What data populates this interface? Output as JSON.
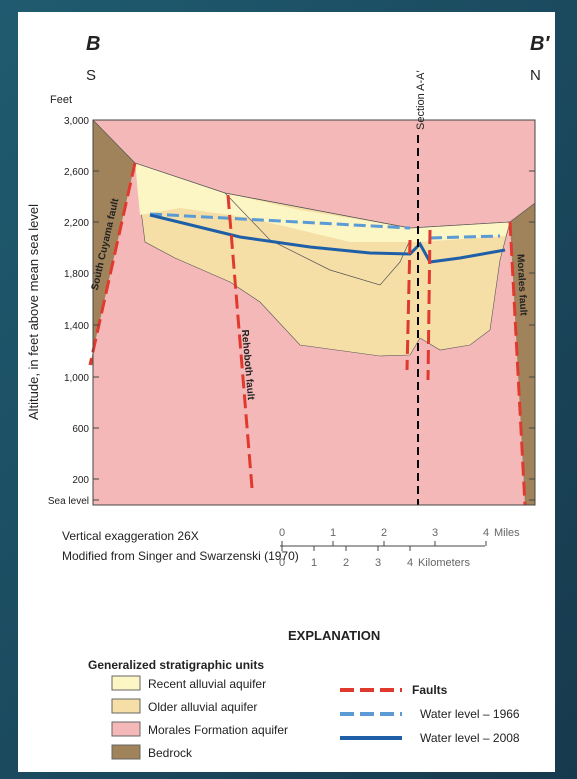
{
  "header": {
    "left_label": "B",
    "right_label": "B′",
    "left_direction": "S",
    "right_direction": "N"
  },
  "axis": {
    "unit": "Feet",
    "label": "Altitude, in feet above mean sea level",
    "ticks": [
      "3,000",
      "2,600",
      "2,200",
      "1,800",
      "1,400",
      "1,000",
      "600",
      "200",
      "Sea level"
    ]
  },
  "annotations": {
    "section": "Section A-A′",
    "faults": [
      "South Cuyama fault",
      "Rehoboth fault",
      "Morales fault"
    ]
  },
  "notes": {
    "exaggeration": "Vertical exaggeration 26X",
    "source": "Modified from Singer and Swarzenski (1970)"
  },
  "scale": {
    "miles": [
      "0",
      "1",
      "2",
      "3",
      "4"
    ],
    "miles_unit": "Miles",
    "km": [
      "0",
      "1",
      "2",
      "3",
      "4"
    ],
    "km_unit": "Kilometers"
  },
  "explanation": {
    "title": "EXPLANATION",
    "units_title": "Generalized stratigraphic units",
    "units": [
      "Recent alluvial aquifer",
      "Older alluvial aquifer",
      "Morales Formation aquifer",
      "Bedrock"
    ],
    "lines": [
      "Faults",
      "Water level – 1966",
      "Water level – 2008"
    ]
  }
}
